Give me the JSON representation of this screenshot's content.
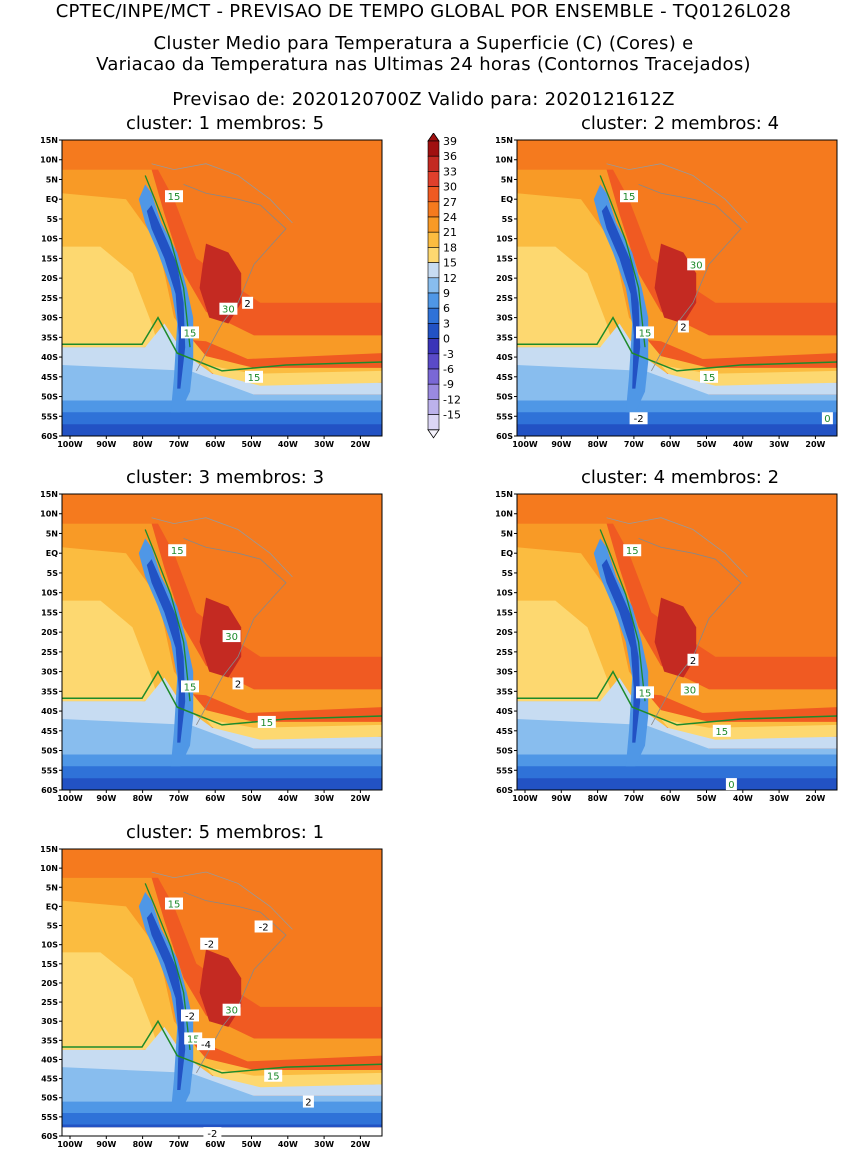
{
  "header": {
    "line1": "CPTEC/INPE/MCT - PREVISAO DE TEMPO GLOBAL POR ENSEMBLE - TQ0126L028",
    "line2": "Cluster Medio para Temperatura a Superficie (C) (Cores) e",
    "line3": "Variacao da Temperatura nas Ultimas 24 horas (Contornos Tracejados)",
    "line4": "Previsao de: 2020120700Z    Valido para: 2020121612Z"
  },
  "lat_labels": [
    "15N",
    "10N",
    "5N",
    "EQ",
    "5S",
    "10S",
    "15S",
    "20S",
    "25S",
    "30S",
    "35S",
    "40S",
    "45S",
    "50S",
    "55S",
    "60S"
  ],
  "lon_labels": [
    "100W",
    "90W",
    "80W",
    "70W",
    "60W",
    "50W",
    "40W",
    "30W",
    "20W"
  ],
  "colorbar": {
    "labels": [
      "39",
      "36",
      "33",
      "30",
      "27",
      "24",
      "21",
      "18",
      "15",
      "12",
      "9",
      "6",
      "3",
      "0",
      "-3",
      "-6",
      "-9",
      "-12",
      "-15"
    ],
    "colors": [
      "#a01010",
      "#c42a22",
      "#e0402c",
      "#f05a22",
      "#f57a1e",
      "#f89a26",
      "#fbbc40",
      "#fdd870",
      "#c7dcf2",
      "#88bdee",
      "#4f97e6",
      "#2f72d8",
      "#2252c4",
      "#3a34b8",
      "#5a4ac8",
      "#7a68d6",
      "#9a8ae0",
      "#bcb2ec",
      "#dcd6f6"
    ]
  },
  "panels": [
    {
      "title": "cluster: 1   membros: 5",
      "labels": [
        "15",
        "15",
        "30",
        "2",
        "15"
      ]
    },
    {
      "title": "cluster: 2   membros: 4",
      "labels": [
        "15",
        "30",
        "15",
        "2",
        "15",
        "-2",
        "0"
      ]
    },
    {
      "title": "cluster: 3   membros: 3",
      "labels": [
        "15",
        "30",
        "15",
        "2",
        "15"
      ]
    },
    {
      "title": "cluster: 4   membros: 2",
      "labels": [
        "15",
        "2",
        "30",
        "15",
        "15",
        "0"
      ]
    },
    {
      "title": "cluster: 5   membros: 1",
      "labels": [
        "15",
        "-2",
        "-2",
        "-2",
        "30",
        "15",
        "-4",
        "15",
        "2",
        "-2"
      ]
    }
  ]
}
